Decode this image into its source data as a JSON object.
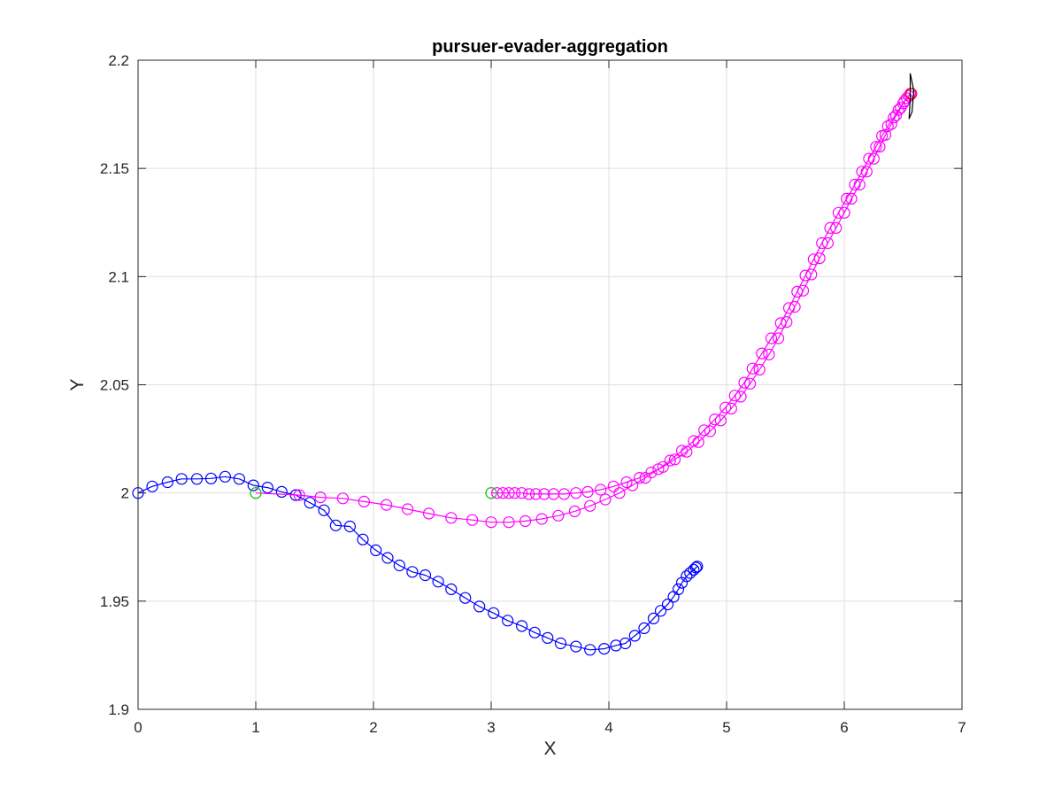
{
  "chart_data": {
    "type": "scatter",
    "title": "pursuer-evader-aggregation",
    "xlabel": "X",
    "ylabel": "Y",
    "xlim": [
      0,
      7
    ],
    "ylim": [
      1.9,
      2.2
    ],
    "xticks": [
      0,
      1,
      2,
      3,
      4,
      5,
      6,
      7
    ],
    "yticks": [
      1.9,
      1.95,
      2.0,
      2.05,
      2.1,
      2.15,
      2.2
    ],
    "xtick_labels": [
      "0",
      "1",
      "2",
      "3",
      "4",
      "5",
      "6",
      "7"
    ],
    "ytick_labels": [
      "1.9",
      "1.95",
      "2",
      "2.05",
      "2.1",
      "2.15",
      "2.2"
    ],
    "grid": true,
    "series": [
      {
        "color": "#0000ff",
        "style": "line-with-circle-markers",
        "points": [
          [
            0.0,
            2.0
          ],
          [
            0.12,
            2.003
          ],
          [
            0.25,
            2.005
          ],
          [
            0.37,
            2.0065
          ],
          [
            0.5,
            2.0065
          ],
          [
            0.62,
            2.0067
          ],
          [
            0.74,
            2.0075
          ],
          [
            0.86,
            2.0065
          ],
          [
            0.98,
            2.0035
          ],
          [
            1.1,
            2.0025
          ],
          [
            1.22,
            2.0005
          ],
          [
            1.34,
            1.999
          ],
          [
            1.46,
            1.9955
          ],
          [
            1.58,
            1.992
          ],
          [
            1.68,
            1.985
          ],
          [
            1.8,
            1.9845
          ],
          [
            1.91,
            1.9785
          ],
          [
            2.02,
            1.9735
          ],
          [
            2.12,
            1.97
          ],
          [
            2.22,
            1.9665
          ],
          [
            2.33,
            1.9635
          ],
          [
            2.44,
            1.962
          ],
          [
            2.55,
            1.959
          ],
          [
            2.66,
            1.9555
          ],
          [
            2.78,
            1.9515
          ],
          [
            2.9,
            1.9475
          ],
          [
            3.02,
            1.9445
          ],
          [
            3.14,
            1.941
          ],
          [
            3.26,
            1.9385
          ],
          [
            3.37,
            1.9355
          ],
          [
            3.48,
            1.933
          ],
          [
            3.59,
            1.9305
          ],
          [
            3.72,
            1.929
          ],
          [
            3.84,
            1.9275
          ],
          [
            3.96,
            1.928
          ],
          [
            4.06,
            1.9295
          ],
          [
            4.14,
            1.9305
          ],
          [
            4.22,
            1.934
          ],
          [
            4.3,
            1.9375
          ],
          [
            4.38,
            1.942
          ],
          [
            4.44,
            1.9455
          ],
          [
            4.5,
            1.9485
          ],
          [
            4.55,
            1.952
          ],
          [
            4.59,
            1.9555
          ],
          [
            4.62,
            1.9585
          ],
          [
            4.66,
            1.9615
          ],
          [
            4.69,
            1.963
          ],
          [
            4.72,
            1.9645
          ],
          [
            4.74,
            1.9655
          ],
          [
            4.75,
            1.966
          ]
        ]
      },
      {
        "color": "#ff00ff",
        "style": "line-with-circle-markers",
        "points": [
          [
            1.0,
            2.0
          ],
          [
            1.37,
            1.999
          ],
          [
            1.55,
            1.998
          ],
          [
            1.74,
            1.9975
          ],
          [
            1.92,
            1.996
          ],
          [
            2.11,
            1.9945
          ],
          [
            2.29,
            1.9925
          ],
          [
            2.47,
            1.9905
          ],
          [
            2.66,
            1.9885
          ],
          [
            2.84,
            1.9875
          ],
          [
            3.0,
            1.9865
          ],
          [
            3.15,
            1.9865
          ],
          [
            3.29,
            1.987
          ],
          [
            3.43,
            1.988
          ],
          [
            3.57,
            1.9895
          ],
          [
            3.71,
            1.9915
          ],
          [
            3.84,
            1.994
          ],
          [
            3.97,
            1.997
          ],
          [
            4.09,
            2.0
          ],
          [
            4.2,
            2.0035
          ],
          [
            4.31,
            2.007
          ],
          [
            4.42,
            2.011
          ],
          [
            4.52,
            2.015
          ],
          [
            4.62,
            2.0195
          ],
          [
            4.72,
            2.024
          ],
          [
            4.81,
            2.029
          ],
          [
            4.9,
            2.034
          ],
          [
            4.99,
            2.0395
          ],
          [
            5.07,
            2.045
          ],
          [
            5.15,
            2.051
          ],
          [
            5.22,
            2.0575
          ],
          [
            5.3,
            2.0645
          ],
          [
            5.38,
            2.0715
          ],
          [
            5.46,
            2.0785
          ],
          [
            5.53,
            2.0855
          ],
          [
            5.6,
            2.093
          ],
          [
            5.67,
            2.1005
          ],
          [
            5.74,
            2.108
          ],
          [
            5.81,
            2.1155
          ],
          [
            5.88,
            2.1225
          ],
          [
            5.95,
            2.1295
          ],
          [
            6.02,
            2.136
          ],
          [
            6.09,
            2.1425
          ],
          [
            6.15,
            2.1485
          ],
          [
            6.21,
            2.1545
          ],
          [
            6.27,
            2.16
          ],
          [
            6.32,
            2.165
          ],
          [
            6.37,
            2.1695
          ],
          [
            6.42,
            2.1735
          ],
          [
            6.46,
            2.177
          ],
          [
            6.5,
            2.18
          ],
          [
            6.53,
            2.1825
          ],
          [
            6.56,
            2.1845
          ]
        ]
      },
      {
        "color": "#ff00ff",
        "style": "line-with-circle-markers",
        "points": [
          [
            3.0,
            2.0
          ],
          [
            3.05,
            2.0
          ],
          [
            3.1,
            2.0
          ],
          [
            3.15,
            2.0
          ],
          [
            3.2,
            2.0
          ],
          [
            3.26,
            2.0
          ],
          [
            3.32,
            1.9995
          ],
          [
            3.38,
            1.9995
          ],
          [
            3.45,
            1.9995
          ],
          [
            3.53,
            1.9995
          ],
          [
            3.62,
            1.9995
          ],
          [
            3.72,
            2.0
          ],
          [
            3.82,
            2.0005
          ],
          [
            3.93,
            2.0015
          ],
          [
            4.04,
            2.003
          ],
          [
            4.15,
            2.005
          ],
          [
            4.26,
            2.007
          ],
          [
            4.36,
            2.0095
          ],
          [
            4.46,
            2.012
          ],
          [
            4.56,
            2.0155
          ],
          [
            4.66,
            2.019
          ],
          [
            4.76,
            2.0235
          ],
          [
            4.86,
            2.0285
          ],
          [
            4.95,
            2.0335
          ],
          [
            5.04,
            2.039
          ],
          [
            5.12,
            2.0445
          ],
          [
            5.2,
            2.0505
          ],
          [
            5.28,
            2.057
          ],
          [
            5.36,
            2.064
          ],
          [
            5.44,
            2.0715
          ],
          [
            5.51,
            2.079
          ],
          [
            5.58,
            2.086
          ],
          [
            5.65,
            2.0935
          ],
          [
            5.72,
            2.101
          ],
          [
            5.79,
            2.1085
          ],
          [
            5.86,
            2.1155
          ],
          [
            5.93,
            2.1225
          ],
          [
            6.0,
            2.1295
          ],
          [
            6.06,
            2.136
          ],
          [
            6.13,
            2.1425
          ],
          [
            6.19,
            2.1485
          ],
          [
            6.25,
            2.1545
          ],
          [
            6.3,
            2.16
          ],
          [
            6.35,
            2.1655
          ],
          [
            6.4,
            2.1705
          ],
          [
            6.44,
            2.1745
          ],
          [
            6.48,
            2.178
          ],
          [
            6.51,
            2.181
          ],
          [
            6.55,
            2.1835
          ]
        ]
      },
      {
        "color": "#00dd00",
        "style": "circle-markers",
        "points": [
          [
            1.0,
            2.0
          ],
          [
            3.0,
            2.0
          ]
        ]
      },
      {
        "color": "#ff0000",
        "style": "circle-markers",
        "points": [
          [
            6.57,
            2.1845
          ]
        ]
      },
      {
        "color": "#000000",
        "style": "line",
        "points": [
          [
            6.56,
            2.194
          ],
          [
            6.59,
            2.186
          ],
          [
            6.575,
            2.176
          ],
          [
            6.55,
            2.173
          ],
          [
            6.56,
            2.182
          ],
          [
            6.56,
            2.194
          ]
        ]
      }
    ]
  }
}
